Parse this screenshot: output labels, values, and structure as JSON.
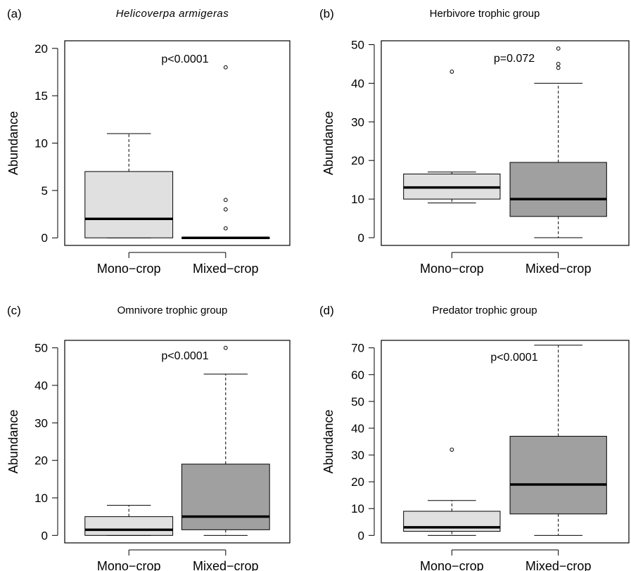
{
  "panels": [
    {
      "letter": "(a)",
      "title": "Helicoverpa armigeras",
      "title_italic": true,
      "annotation": "p<0.0001",
      "chart_data": {
        "type": "boxplot",
        "title": "Helicoverpa armigeras",
        "ylabel": "Abundance",
        "ylim": [
          -0.8,
          20.8
        ],
        "yticks": [
          0,
          5,
          10,
          15,
          20
        ],
        "categories": [
          "Mono−crop",
          "Mixed−crop"
        ],
        "boxes": [
          {
            "category": "Mono−crop",
            "whisker_low": 0,
            "q1": 0,
            "median": 2,
            "q3": 7,
            "whisker_high": 11,
            "outliers": [],
            "fill": "#e0e0e0"
          },
          {
            "category": "Mixed−crop",
            "whisker_low": 0,
            "q1": 0,
            "median": 0,
            "q3": 0,
            "whisker_high": 0,
            "outliers": [
              1,
              3,
              4,
              18
            ],
            "fill": "#a0a0a0"
          }
        ]
      }
    },
    {
      "letter": "(b)",
      "title": "Herbivore trophic group",
      "title_italic": false,
      "annotation": "p=0.072",
      "chart_data": {
        "type": "boxplot",
        "title": "Herbivore trophic group",
        "ylabel": "Abundance",
        "ylim": [
          -2,
          51
        ],
        "yticks": [
          0,
          10,
          20,
          30,
          40,
          50
        ],
        "categories": [
          "Mono−crop",
          "Mixed−crop"
        ],
        "boxes": [
          {
            "category": "Mono−crop",
            "whisker_low": 9,
            "q1": 10,
            "median": 13,
            "q3": 16.5,
            "whisker_high": 17,
            "outliers": [
              43
            ],
            "fill": "#e0e0e0"
          },
          {
            "category": "Mixed−crop",
            "whisker_low": 0,
            "q1": 5.5,
            "median": 10,
            "q3": 19.5,
            "whisker_high": 40,
            "outliers": [
              44,
              45,
              49
            ],
            "fill": "#a0a0a0"
          }
        ]
      }
    },
    {
      "letter": "(c)",
      "title": "Omnivore trophic group",
      "title_italic": false,
      "annotation": "p<0.0001",
      "chart_data": {
        "type": "boxplot",
        "title": "Omnivore trophic group",
        "ylabel": "Abundance",
        "ylim": [
          -2,
          52
        ],
        "yticks": [
          0,
          10,
          20,
          30,
          40,
          50
        ],
        "categories": [
          "Mono−crop",
          "Mixed−crop"
        ],
        "boxes": [
          {
            "category": "Mono−crop",
            "whisker_low": 0,
            "q1": 0,
            "median": 1.5,
            "q3": 5,
            "whisker_high": 8,
            "outliers": [],
            "fill": "#e0e0e0"
          },
          {
            "category": "Mixed−crop",
            "whisker_low": 0,
            "q1": 1.5,
            "median": 5,
            "q3": 19,
            "whisker_high": 43,
            "outliers": [
              50
            ],
            "fill": "#a0a0a0"
          }
        ]
      }
    },
    {
      "letter": "(d)",
      "title": "Predator trophic group",
      "title_italic": false,
      "annotation": "p<0.0001",
      "chart_data": {
        "type": "boxplot",
        "title": "Predator trophic group",
        "ylabel": "Abundance",
        "ylim": [
          -2.8,
          72.8
        ],
        "yticks": [
          0,
          10,
          20,
          30,
          40,
          50,
          60,
          70
        ],
        "categories": [
          "Mono−crop",
          "Mixed−crop"
        ],
        "boxes": [
          {
            "category": "Mono−crop",
            "whisker_low": 0,
            "q1": 1.5,
            "median": 3,
            "q3": 9,
            "whisker_high": 13,
            "outliers": [
              32
            ],
            "fill": "#e0e0e0"
          },
          {
            "category": "Mixed−crop",
            "whisker_low": 0,
            "q1": 8,
            "median": 19,
            "q3": 37,
            "whisker_high": 71,
            "outliers": [],
            "fill": "#a0a0a0"
          }
        ]
      }
    }
  ]
}
